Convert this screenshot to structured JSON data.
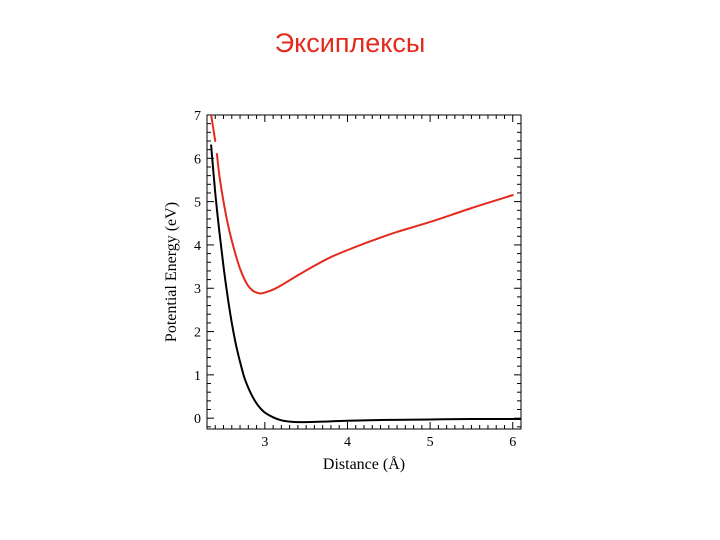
{
  "slide": {
    "title": "Эксиплексы"
  },
  "chart_data": {
    "type": "line",
    "xlabel": "Distance (Å)",
    "ylabel": "Potential Energy (eV)",
    "xlim": [
      2.3,
      6.1
    ],
    "ylim": [
      -0.25,
      7.0
    ],
    "xticks": [
      3,
      4,
      5,
      6
    ],
    "yticks": [
      0,
      1,
      2,
      3,
      4,
      5,
      6,
      7
    ],
    "grid": false,
    "series": [
      {
        "color": "#000000",
        "x": [
          2.35,
          2.4,
          2.45,
          2.5,
          2.55,
          2.6,
          2.65,
          2.7,
          2.75,
          2.8,
          2.85,
          2.9,
          2.95,
          3.0,
          3.1,
          3.2,
          3.3,
          3.4,
          3.5,
          3.7,
          4.0,
          4.5,
          5.0,
          5.5,
          6.1
        ],
        "y": [
          6.3,
          5.2,
          4.3,
          3.5,
          2.8,
          2.2,
          1.7,
          1.3,
          0.95,
          0.7,
          0.5,
          0.34,
          0.22,
          0.13,
          0.02,
          -0.05,
          -0.08,
          -0.09,
          -0.09,
          -0.08,
          -0.06,
          -0.04,
          -0.03,
          -0.02,
          -0.02
        ]
      },
      {
        "color": "#e32a1c",
        "x": [
          2.42,
          2.45,
          2.5,
          2.55,
          2.6,
          2.65,
          2.7,
          2.75,
          2.8,
          2.85,
          2.9,
          2.95,
          3.0,
          3.1,
          3.2,
          3.4,
          3.6,
          3.8,
          4.0,
          4.3,
          4.6,
          5.0,
          5.5,
          6.0
        ],
        "y": [
          6.1,
          5.6,
          5.0,
          4.5,
          4.1,
          3.75,
          3.45,
          3.22,
          3.05,
          2.95,
          2.9,
          2.88,
          2.9,
          2.97,
          3.07,
          3.3,
          3.52,
          3.72,
          3.88,
          4.1,
          4.3,
          4.53,
          4.85,
          5.15
        ]
      },
      {
        "color": "#e32a1c",
        "x": [
          2.35,
          2.4
        ],
        "y": [
          7.0,
          6.4
        ]
      }
    ]
  }
}
